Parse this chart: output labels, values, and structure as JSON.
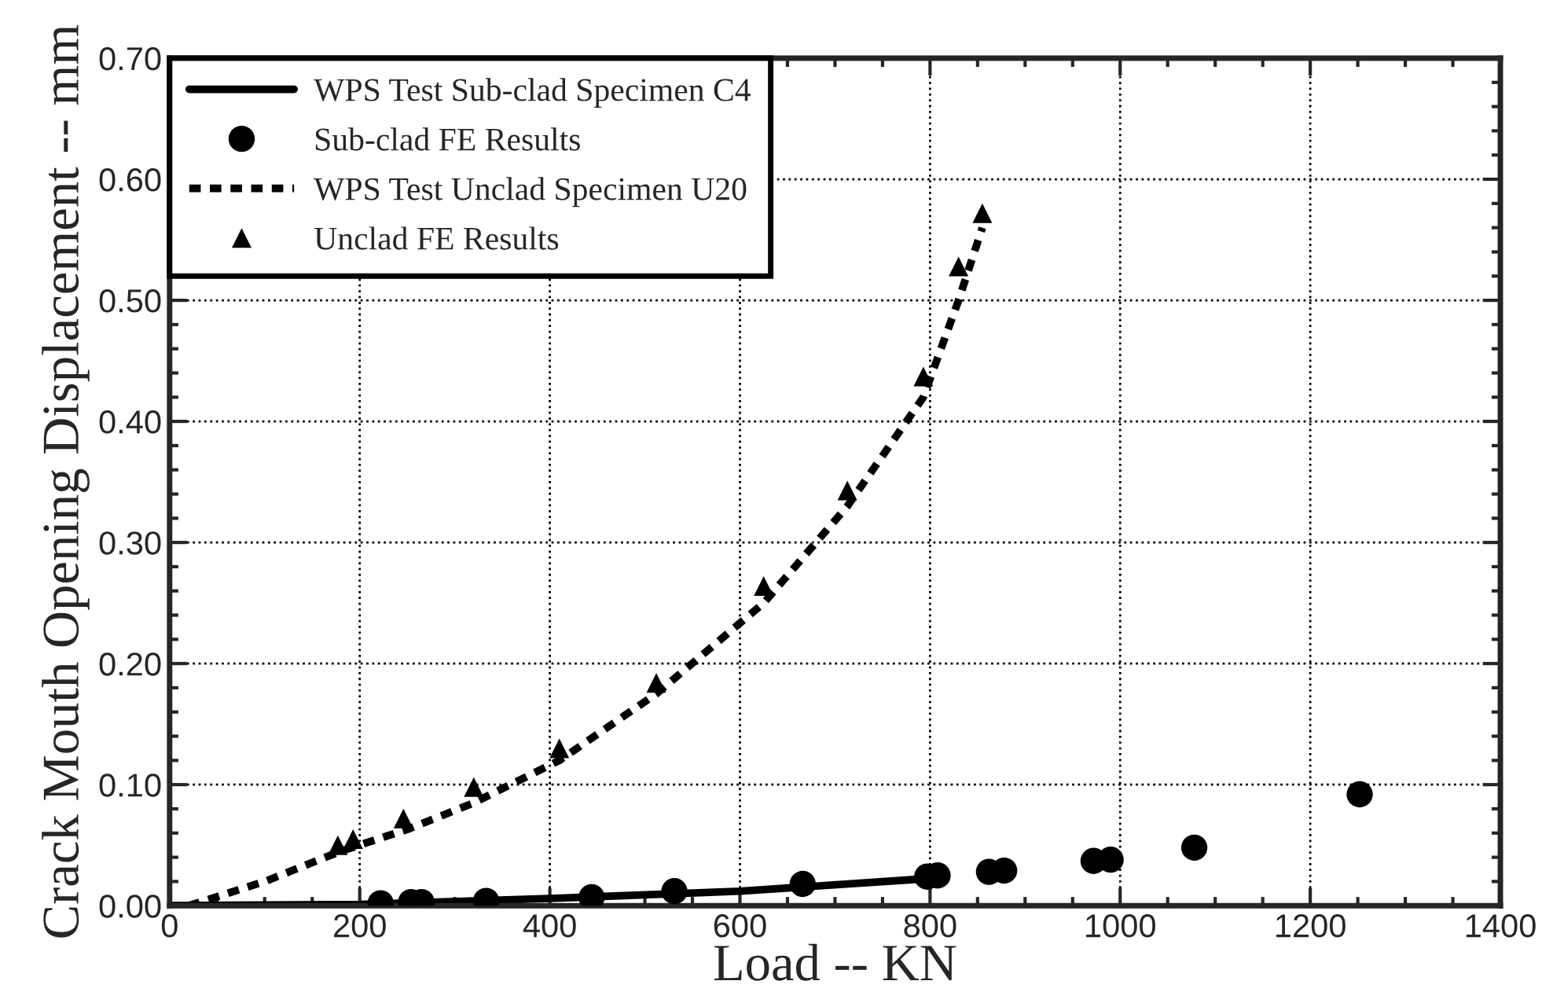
{
  "chart_data": {
    "type": "line",
    "xlabel": "Load -- KN",
    "ylabel": "Crack Mouth Opening Displacement -- mm",
    "xlim": [
      0,
      1400
    ],
    "xticks": [
      0,
      200,
      400,
      600,
      800,
      1000,
      1200,
      1400
    ],
    "ylim": [
      0,
      0.7
    ],
    "yticks": [
      {
        "value": 0,
        "label": "0.00"
      },
      {
        "value": 0.1,
        "label": "0.10"
      },
      {
        "value": 0.2,
        "label": "0.20"
      },
      {
        "value": 0.3,
        "label": "0.30"
      },
      {
        "value": 0.4,
        "label": "0.40"
      },
      {
        "value": 0.5,
        "label": "0.50"
      },
      {
        "value": 0.6,
        "label": "0.60"
      },
      {
        "value": 0.7,
        "label": "0.70"
      }
    ],
    "grid": true,
    "legend": "top left",
    "series": [
      {
        "name": "WPS Test Sub-clad Specimen C4",
        "line_style": "solid",
        "color": "#000000",
        "x": [
          0,
          200,
          400,
          600,
          790
        ],
        "values": [
          0,
          0.001,
          0.006,
          0.012,
          0.022
        ]
      },
      {
        "name": "Sub-clad FE Results",
        "type": "scatter",
        "marker": "circle",
        "color": "#000000",
        "x": [
          222,
          254,
          265,
          333,
          444,
          531,
          666,
          797,
          808,
          862,
          878,
          972,
          990,
          1078,
          1252
        ],
        "values": [
          0.002,
          0.003,
          0.003,
          0.004,
          0.007,
          0.012,
          0.018,
          0.024,
          0.025,
          0.028,
          0.029,
          0.037,
          0.038,
          0.048,
          0.092
        ]
      },
      {
        "name": "WPS Test Unclad Specimen U20",
        "line_style": "dashed",
        "color": "#000000",
        "x": [
          20,
          100,
          180,
          250,
          320,
          410,
          512,
          625,
          713,
          793,
          830,
          855
        ],
        "values": [
          0,
          0.02,
          0.045,
          0.063,
          0.085,
          0.12,
          0.175,
          0.25,
          0.33,
          0.42,
          0.5,
          0.56
        ]
      },
      {
        "name": "Unclad FE Results",
        "type": "scatter",
        "marker": "triangle",
        "color": "#000000",
        "x": [
          177,
          193,
          246,
          320,
          410,
          512,
          625,
          713,
          793,
          830,
          855
        ],
        "values": [
          0.05,
          0.055,
          0.072,
          0.098,
          0.13,
          0.184,
          0.264,
          0.343,
          0.437,
          0.528,
          0.572
        ]
      }
    ]
  }
}
